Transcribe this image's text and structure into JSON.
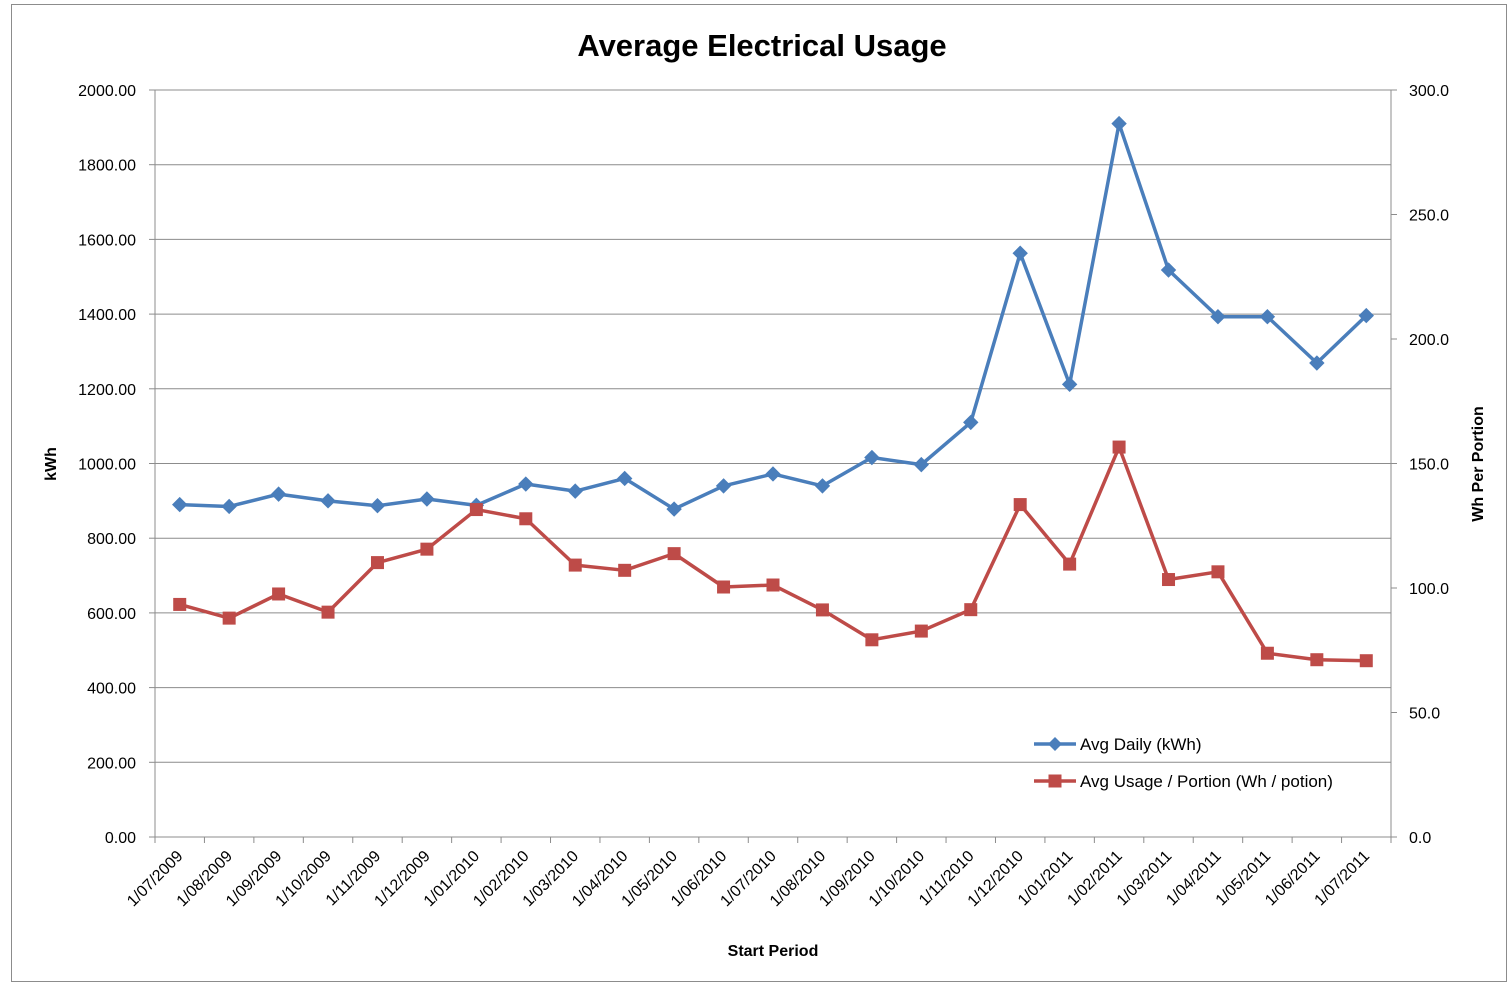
{
  "chart_data": {
    "type": "line",
    "title": "Average Electrical Usage",
    "xlabel": "Start Period",
    "ylabel": "kWh",
    "y2label": "Wh Per Portion",
    "ylim": [
      0,
      2000
    ],
    "y2lim": [
      0,
      300
    ],
    "yticks": [
      "0.00",
      "200.00",
      "400.00",
      "600.00",
      "800.00",
      "1000.00",
      "1200.00",
      "1400.00",
      "1600.00",
      "1800.00",
      "2000.00"
    ],
    "y2ticks": [
      "0.0",
      "50.0",
      "100.0",
      "150.0",
      "200.0",
      "250.0",
      "300.0"
    ],
    "grid": true,
    "legend_position": "bottom-right",
    "categories": [
      "1/07/2009",
      "1/08/2009",
      "1/09/2009",
      "1/10/2009",
      "1/11/2009",
      "1/12/2009",
      "1/01/2010",
      "1/02/2010",
      "1/03/2010",
      "1/04/2010",
      "1/05/2010",
      "1/06/2010",
      "1/07/2010",
      "1/08/2010",
      "1/09/2010",
      "1/10/2010",
      "1/11/2010",
      "1/12/2010",
      "1/01/2011",
      "1/02/2011",
      "1/03/2011",
      "1/04/2011",
      "1/05/2011",
      "1/06/2011",
      "1/07/2011"
    ],
    "series": [
      {
        "name": "Avg Daily (kWh)",
        "axis": "left",
        "color": "#4a7ebb",
        "marker": "diamond",
        "values": [
          890,
          885,
          918,
          900,
          887,
          905,
          888,
          945,
          926,
          960,
          878,
          940,
          972,
          940,
          1016,
          997,
          1110,
          1563,
          1212,
          1910,
          1518,
          1393,
          1393,
          1269,
          1396
        ]
      },
      {
        "name": "Avg Usage / Portion (Wh / potion)",
        "axis": "right",
        "color": "#be4b48",
        "marker": "square",
        "values": [
          93.4,
          87.9,
          97.6,
          90.3,
          110.2,
          115.6,
          131.5,
          127.8,
          109.2,
          107.1,
          113.8,
          100.4,
          101.2,
          91.2,
          79.2,
          82.7,
          91.3,
          133.5,
          109.6,
          156.6,
          103.4,
          106.5,
          73.8,
          71.2,
          70.8
        ]
      }
    ]
  }
}
